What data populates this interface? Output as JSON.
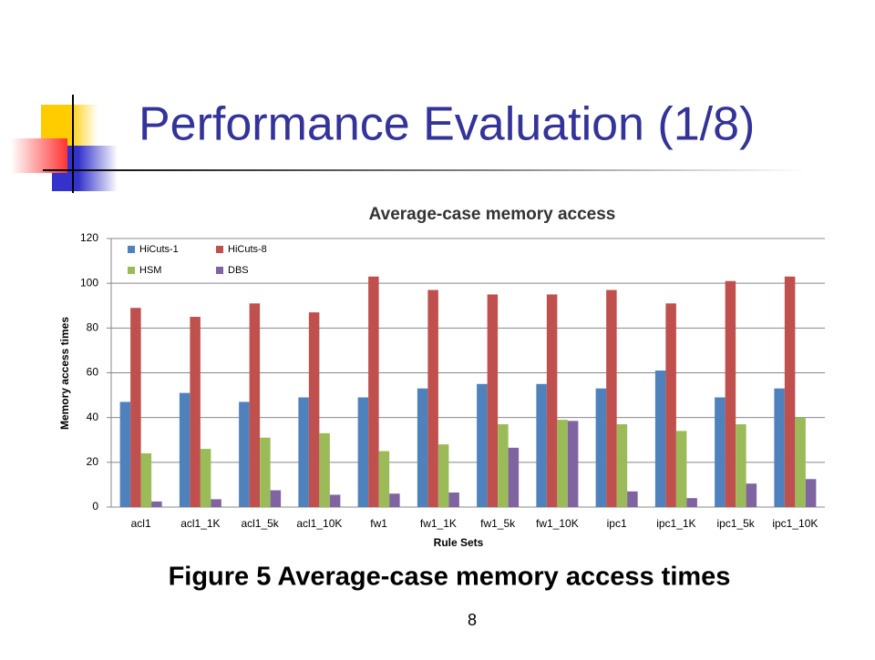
{
  "slide": {
    "title": "Performance Evaluation (1/8)",
    "caption": "Figure 5 Average-case memory access times",
    "page_number": "8"
  },
  "chart_data": {
    "type": "bar",
    "title": "Average-case memory access",
    "x_label": "Rule Sets",
    "y_label": "Memory access  times",
    "categories": [
      "acl1",
      "acl1_1K",
      "acl1_5k",
      "acl1_10K",
      "fw1",
      "fw1_1K",
      "fw1_5k",
      "fw1_10K",
      "ipc1",
      "ipc1_1K",
      "ipc1_5k",
      "ipc1_10K"
    ],
    "series": [
      {
        "name": "HiCuts-1",
        "color": "#4f81bd",
        "values": [
          47,
          51,
          47,
          49,
          49,
          53,
          55,
          55,
          53,
          61,
          49,
          53
        ]
      },
      {
        "name": "HiCuts-8",
        "color": "#c0504d",
        "values": [
          89,
          85,
          91,
          87,
          103,
          97,
          95,
          95,
          97,
          91,
          101,
          103
        ]
      },
      {
        "name": "HSM",
        "color": "#9bbb59",
        "values": [
          24,
          26,
          31,
          33,
          25,
          28,
          37,
          39,
          37,
          34,
          37,
          40
        ]
      },
      {
        "name": "DBS",
        "color": "#8064a2",
        "values": [
          2.5,
          3.5,
          7.5,
          5.5,
          6,
          6.5,
          26.5,
          38.5,
          7,
          4,
          10.5,
          12.5
        ]
      }
    ],
    "ylim": [
      0,
      120
    ],
    "yticks": [
      0,
      20,
      40,
      60,
      80,
      100,
      120
    ],
    "grid": true,
    "legend": "top-left"
  }
}
